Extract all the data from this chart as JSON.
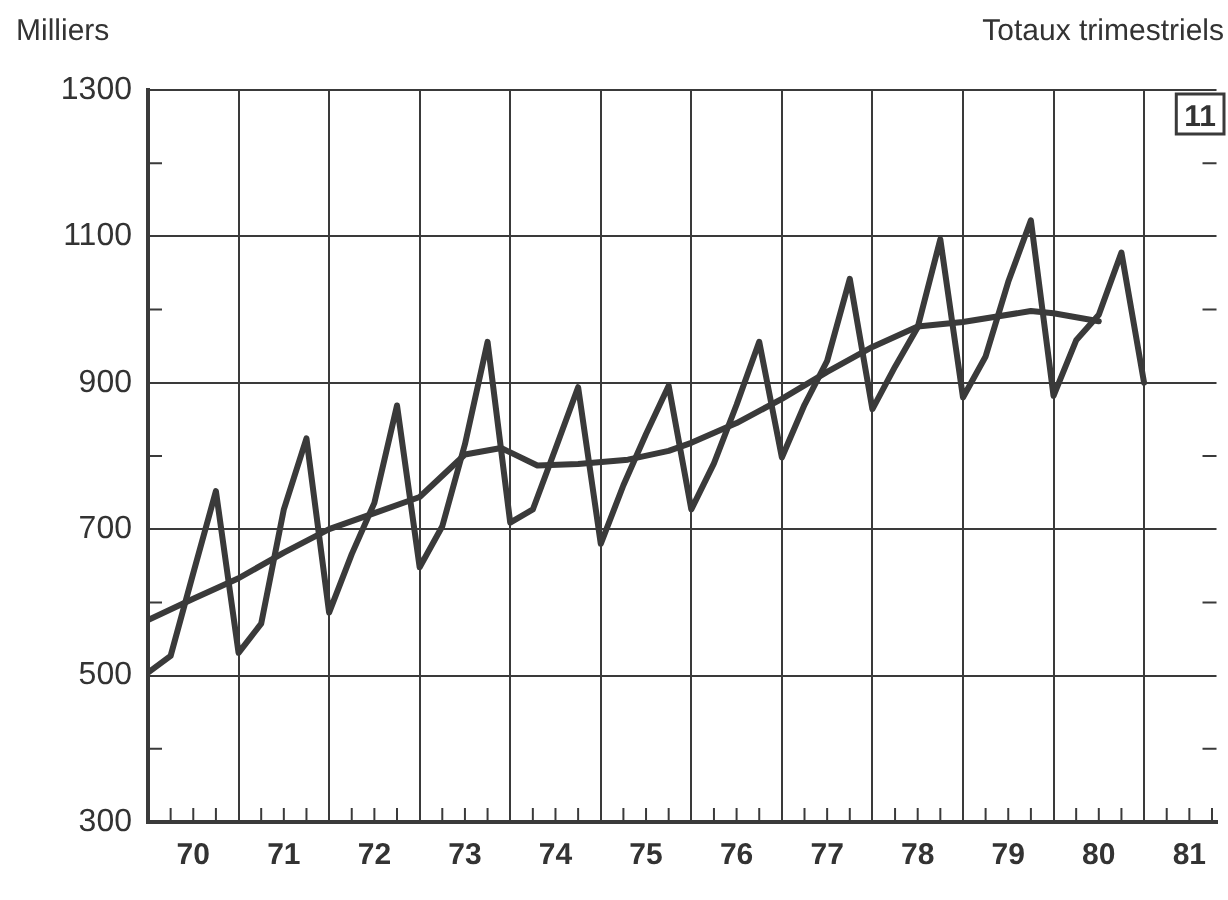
{
  "chart_data": {
    "type": "line",
    "ylabel": "Milliers",
    "annotations": [
      "Totaux trimestriels",
      "11"
    ],
    "xlim": [
      69.5,
      81.3
    ],
    "xticks": [
      {
        "value": 69.5,
        "label": null
      },
      {
        "value": 69.75,
        "label": null
      },
      70,
      {
        "value": 70.25,
        "label": null
      },
      {
        "value": 70.5,
        "label": null
      },
      {
        "value": 70.75,
        "label": null
      },
      71,
      {
        "value": 71.25,
        "label": null
      },
      {
        "value": 71.5,
        "label": null
      },
      {
        "value": 71.75,
        "label": null
      },
      72,
      {
        "value": 72.25,
        "label": null
      },
      {
        "value": 72.5,
        "label": null
      },
      {
        "value": 72.75,
        "label": null
      },
      73,
      {
        "value": 73.25,
        "label": null
      },
      {
        "value": 73.5,
        "label": null
      },
      {
        "value": 73.75,
        "label": null
      },
      74,
      {
        "value": 74.25,
        "label": null
      },
      {
        "value": 74.5,
        "label": null
      },
      {
        "value": 74.75,
        "label": null
      },
      75,
      {
        "value": 75.25,
        "label": null
      },
      {
        "value": 75.5,
        "label": null
      },
      {
        "value": 75.75,
        "label": null
      },
      76,
      {
        "value": 76.25,
        "label": null
      },
      {
        "value": 76.5,
        "label": null
      },
      {
        "value": 76.75,
        "label": null
      },
      77,
      {
        "value": 77.25,
        "label": null
      },
      {
        "value": 77.5,
        "label": null
      },
      {
        "value": 77.75,
        "label": null
      },
      78,
      {
        "value": 78.25,
        "label": null
      },
      {
        "value": 78.5,
        "label": null
      },
      {
        "value": 78.75,
        "label": null
      },
      79,
      {
        "value": 79.25,
        "label": null
      },
      {
        "value": 79.5,
        "label": null
      },
      {
        "value": 79.75,
        "label": null
      },
      80,
      {
        "value": 80.25,
        "label": null
      },
      {
        "value": 80.5,
        "label": null
      },
      {
        "value": 80.75,
        "label": null
      },
      81,
      {
        "value": 81.25,
        "label": null
      }
    ],
    "ylim": [
      300,
      1300
    ],
    "yticks": [
      300,
      {
        "value": 400,
        "label": null
      },
      500,
      {
        "value": 600,
        "label": null
      },
      700,
      {
        "value": 800,
        "label": null
      },
      900,
      {
        "value": 1000,
        "label": null
      },
      1100,
      {
        "value": 1200,
        "label": null
      },
      1300
    ],
    "grid": true,
    "legend": false,
    "marker": "none",
    "line_style": "solid",
    "series": [
      {
        "color": "#3a3a3a",
        "x": [
          69.5,
          69.75,
          70,
          70.25,
          70.5,
          70.75,
          71,
          71.25,
          71.5,
          71.75,
          72,
          72.25,
          72.5,
          72.75,
          73,
          73.25,
          73.5,
          73.75,
          74,
          74.25,
          74.5,
          74.75,
          75,
          75.25,
          75.5,
          75.75,
          76,
          76.25,
          76.5,
          76.75,
          77,
          77.25,
          77.5,
          77.75,
          78,
          78.25,
          78.5,
          78.75,
          79,
          79.25,
          79.5,
          79.75,
          80,
          80.25,
          80.5
        ],
        "values": [
          504,
          527,
          640,
          752,
          531,
          571,
          727,
          824,
          586,
          666,
          736,
          869,
          648,
          704,
          816,
          956,
          709,
          727,
          810,
          894,
          680,
          760,
          830,
          896,
          727,
          790,
          870,
          956,
          798,
          870,
          930,
          1042,
          864,
          922,
          976,
          1096,
          880,
          936,
          1038,
          1122,
          882,
          958,
          993,
          1078,
          900
        ]
      },
      {
        "color": "#3a3a3a",
        "x": [
          69.5,
          70,
          70.5,
          71,
          71.5,
          72,
          72.5,
          73,
          73.4,
          73.8,
          74.25,
          74.8,
          75.25,
          75.5,
          76,
          76.5,
          77,
          77.5,
          78,
          78.5,
          79.25,
          79.5,
          80
        ],
        "values": [
          576,
          605,
          633,
          668,
          700,
          722,
          744,
          802,
          811,
          787,
          789,
          795,
          807,
          818,
          845,
          878,
          915,
          949,
          977,
          983,
          998,
          995,
          984
        ]
      }
    ]
  }
}
